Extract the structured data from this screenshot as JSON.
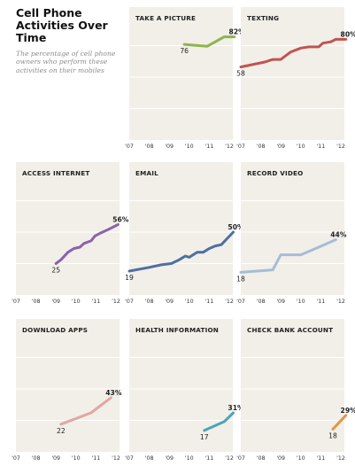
{
  "header": {
    "title": "Cell Phone Activities Over Time",
    "subtitle": "The percentage of cell phone owners who perform these activities on their mobiles"
  },
  "chart_data": [
    {
      "type": "line",
      "title": "TAKE A PICTURE",
      "color": "#8db54e",
      "categories": [
        "'07",
        "'08",
        "'09",
        "'10",
        "'11",
        "'12"
      ],
      "series": [
        {
          "x": [
            2009.75,
            2010.9,
            2011.75,
            2012.25
          ],
          "values": [
            76,
            74.5,
            82,
            82
          ]
        }
      ],
      "start_label": "76",
      "end_label": "82%",
      "ylim": [
        0,
        100
      ]
    },
    {
      "type": "line",
      "title": "TEXTING",
      "color": "#c05450",
      "categories": [
        "'07",
        "'08",
        "'09",
        "'10",
        "'11",
        "'12"
      ],
      "series": [
        {
          "x": [
            2007.0,
            2008.2,
            2008.6,
            2009.0,
            2009.5,
            2010.0,
            2010.4,
            2010.9,
            2011.1,
            2011.5,
            2011.75,
            2012.25
          ],
          "values": [
            58,
            62,
            64,
            64,
            70,
            73,
            74,
            74,
            77,
            78,
            80,
            80
          ]
        }
      ],
      "start_label": "58",
      "end_label": "80%",
      "ylim": [
        0,
        100
      ]
    },
    {
      "type": "line",
      "title": "ACCESS INTERNET",
      "color": "#8a62aa",
      "categories": [
        "'07",
        "'08",
        "'09",
        "'10",
        "'11",
        "'12"
      ],
      "series": [
        {
          "x": [
            2009.0,
            2009.25,
            2009.6,
            2009.9,
            2010.2,
            2010.4,
            2010.75,
            2010.95,
            2011.2,
            2011.6,
            2012.1
          ],
          "values": [
            25,
            28,
            34,
            37,
            38,
            41,
            43,
            47,
            49,
            52,
            56
          ]
        }
      ],
      "start_label": "25",
      "end_label": "56%",
      "ylim": [
        0,
        100
      ]
    },
    {
      "type": "line",
      "title": "EMAIL",
      "color": "#4e6fa0",
      "categories": [
        "'07",
        "'08",
        "'09",
        "'10",
        "'11",
        "'12"
      ],
      "series": [
        {
          "x": [
            2007.0,
            2008.0,
            2008.6,
            2009.1,
            2009.5,
            2009.8,
            2010.0,
            2010.4,
            2010.7,
            2011.0,
            2011.3,
            2011.6,
            2011.9,
            2012.2
          ],
          "values": [
            19,
            22,
            24,
            25,
            28,
            31,
            30,
            34,
            34,
            37,
            39,
            40,
            45,
            50
          ]
        }
      ],
      "start_label": "19",
      "end_label": "50%",
      "ylim": [
        0,
        100
      ]
    },
    {
      "type": "line",
      "title": "RECORD VIDEO",
      "color": "#a6bcd6",
      "categories": [
        "'07",
        "'08",
        "'09",
        "'10",
        "'11",
        "'12"
      ],
      "series": [
        {
          "x": [
            2007.0,
            2008.6,
            2009.0,
            2010.0,
            2010.9,
            2011.75
          ],
          "values": [
            18,
            20,
            32,
            32,
            38,
            44
          ]
        }
      ],
      "start_label": "18",
      "end_label": "44%",
      "ylim": [
        0,
        100
      ]
    },
    {
      "type": "line",
      "title": "DOWNLOAD APPS",
      "color": "#e0a6a6",
      "categories": [
        "'07",
        "'08",
        "'09",
        "'10",
        "'11",
        "'12"
      ],
      "series": [
        {
          "x": [
            2009.25,
            2010.75,
            2011.75
          ],
          "values": [
            22,
            31,
            43
          ]
        }
      ],
      "start_label": "22",
      "end_label": "43%",
      "ylim": [
        0,
        100
      ]
    },
    {
      "type": "line",
      "title": "HEALTH INFORMATION",
      "color": "#4da4b8",
      "categories": [
        "'07",
        "'08",
        "'09",
        "'10",
        "'11",
        "'12"
      ],
      "series": [
        {
          "x": [
            2010.75,
            2011.75,
            2012.2
          ],
          "values": [
            17,
            24,
            31
          ]
        }
      ],
      "start_label": "17",
      "end_label": "31%",
      "ylim": [
        0,
        100
      ]
    },
    {
      "type": "line",
      "title": "CHECK BANK ACCOUNT",
      "color": "#e0954a",
      "categories": [
        "'07",
        "'08",
        "'09",
        "'10",
        "'11",
        "'12"
      ],
      "series": [
        {
          "x": [
            2011.6,
            2012.25
          ],
          "values": [
            18,
            29
          ]
        }
      ],
      "start_label": "18",
      "end_label": "29%",
      "ylim": [
        0,
        100
      ]
    }
  ]
}
